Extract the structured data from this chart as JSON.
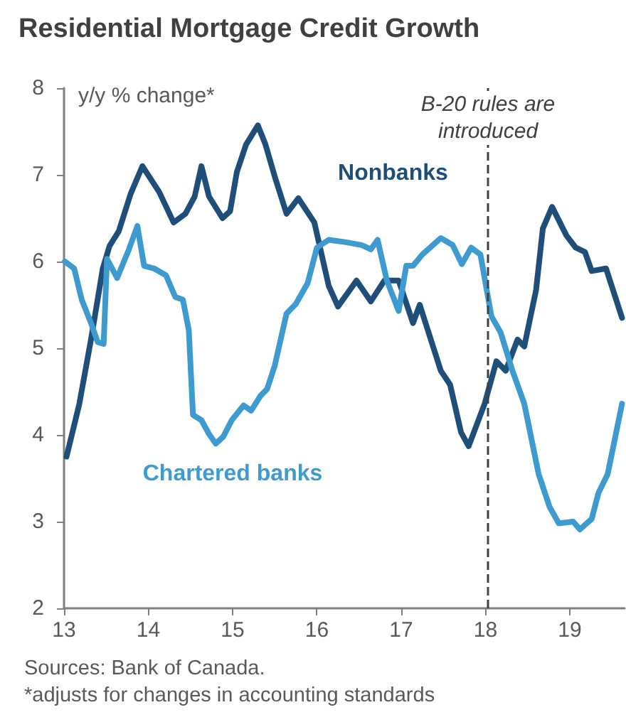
{
  "chart_data": {
    "type": "line",
    "title": "Residential Mortgage Credit Growth",
    "ylabel": "y/y % change*",
    "annotations": [
      "Sources: Bank of Canada.",
      "*adjusts for changes in accounting standards"
    ],
    "xlim": [
      13,
      19.65
    ],
    "xticks": [
      13,
      14,
      15,
      16,
      17,
      18,
      19
    ],
    "ylim": [
      2,
      8
    ],
    "yticks": [
      2,
      3,
      4,
      5,
      6,
      7,
      8
    ],
    "grid": false,
    "legend": false,
    "marker": "none",
    "line_style": "solid",
    "ref_lines": [
      {
        "axis": "x",
        "value": 18.03,
        "label": "B-20 rules are\nintroduced",
        "color": "#404040",
        "line_style": "dashed"
      }
    ],
    "series": [
      {
        "name": "Nonbanks",
        "color": "#1f4e79",
        "x": [
          13.03,
          13.18,
          13.32,
          13.46,
          13.54,
          13.65,
          13.79,
          13.93,
          14.13,
          14.3,
          14.44,
          14.55,
          14.63,
          14.72,
          14.88,
          14.97,
          15.05,
          15.16,
          15.3,
          15.39,
          15.5,
          15.64,
          15.78,
          15.97,
          16.14,
          16.25,
          16.47,
          16.64,
          16.8,
          16.97,
          17.14,
          17.22,
          17.47,
          17.58,
          17.71,
          17.8,
          17.99,
          18.13,
          18.24,
          18.38,
          18.46,
          18.6,
          18.68,
          18.79,
          18.96,
          19.07,
          19.18,
          19.26,
          19.43,
          19.62
        ],
        "values": [
          3.75,
          4.35,
          5.1,
          5.92,
          6.18,
          6.35,
          6.78,
          7.1,
          6.8,
          6.45,
          6.55,
          6.75,
          7.1,
          6.75,
          6.5,
          6.58,
          7.03,
          7.35,
          7.57,
          7.35,
          6.98,
          6.55,
          6.73,
          6.45,
          5.72,
          5.48,
          5.78,
          5.54,
          5.78,
          5.78,
          5.29,
          5.5,
          4.74,
          4.58,
          4.03,
          3.87,
          4.36,
          4.85,
          4.74,
          5.1,
          5.02,
          5.67,
          6.38,
          6.63,
          6.3,
          6.16,
          6.11,
          5.89,
          5.92,
          5.35
        ]
      },
      {
        "name": "Chartered banks",
        "color": "#3d9bd0",
        "x": [
          13.01,
          13.12,
          13.21,
          13.32,
          13.4,
          13.47,
          13.51,
          13.63,
          13.77,
          13.87,
          13.95,
          14.07,
          14.21,
          14.32,
          14.41,
          14.48,
          14.53,
          14.63,
          14.72,
          14.8,
          14.89,
          14.99,
          15.13,
          15.22,
          15.33,
          15.41,
          15.5,
          15.64,
          15.75,
          15.89,
          16.0,
          16.14,
          16.36,
          16.53,
          16.64,
          16.72,
          16.83,
          16.97,
          17.06,
          17.14,
          17.25,
          17.47,
          17.61,
          17.72,
          17.83,
          17.94,
          18.07,
          18.18,
          18.32,
          18.46,
          18.63,
          18.76,
          18.87,
          19.04,
          19.12,
          19.26,
          19.34,
          19.45,
          19.62
        ],
        "values": [
          6.0,
          5.92,
          5.56,
          5.29,
          5.07,
          5.05,
          6.03,
          5.81,
          6.14,
          6.41,
          5.95,
          5.92,
          5.84,
          5.59,
          5.56,
          5.21,
          4.23,
          4.17,
          4.01,
          3.9,
          3.98,
          4.17,
          4.34,
          4.28,
          4.45,
          4.53,
          4.8,
          5.4,
          5.51,
          5.75,
          6.16,
          6.25,
          6.22,
          6.19,
          6.14,
          6.25,
          5.78,
          5.43,
          5.95,
          5.95,
          6.08,
          6.27,
          6.19,
          5.97,
          6.16,
          6.08,
          5.37,
          5.18,
          4.74,
          4.36,
          3.55,
          3.17,
          2.98,
          3.0,
          2.91,
          3.03,
          3.33,
          3.55,
          4.36
        ]
      }
    ]
  }
}
